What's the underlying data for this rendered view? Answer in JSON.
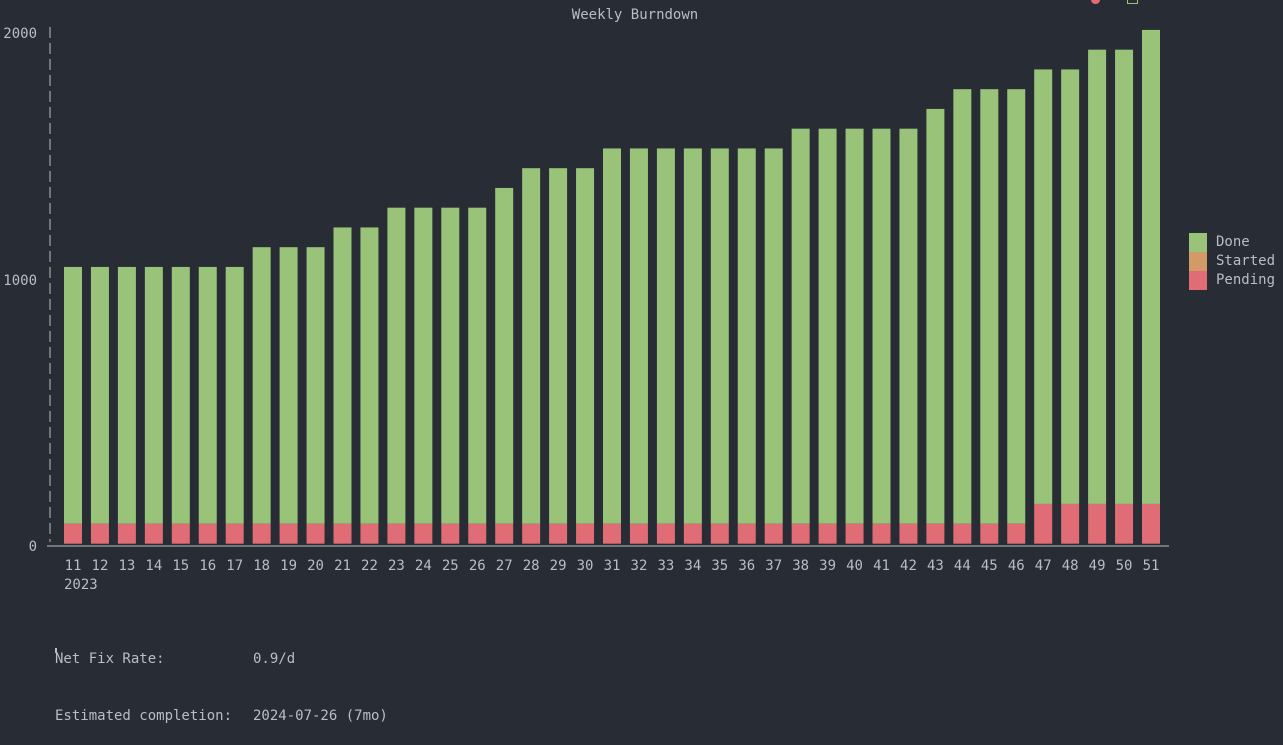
{
  "chart_data": {
    "type": "bar",
    "stacked": true,
    "title": "Weekly Burndown",
    "categories": [
      "11",
      "12",
      "13",
      "14",
      "15",
      "16",
      "17",
      "18",
      "19",
      "20",
      "21",
      "22",
      "23",
      "24",
      "25",
      "26",
      "27",
      "28",
      "29",
      "30",
      "31",
      "32",
      "33",
      "34",
      "35",
      "36",
      "37",
      "38",
      "39",
      "40",
      "41",
      "42",
      "43",
      "44",
      "45",
      "46",
      "47",
      "48",
      "49",
      "50",
      "51"
    ],
    "x_sublabel": "2023",
    "yticks": [
      "0",
      "1000",
      "2000"
    ],
    "ylim": [
      0,
      2000
    ],
    "series": [
      {
        "name": "Pending",
        "color": "#e06c75",
        "values": [
          78,
          78,
          78,
          78,
          78,
          78,
          78,
          78,
          78,
          78,
          78,
          78,
          78,
          78,
          78,
          78,
          78,
          78,
          78,
          78,
          78,
          78,
          78,
          78,
          78,
          78,
          78,
          78,
          78,
          78,
          78,
          78,
          78,
          78,
          78,
          78,
          155,
          155,
          155,
          155,
          155
        ]
      },
      {
        "name": "Started",
        "color": "#d19a66",
        "values": [
          0,
          0,
          0,
          0,
          0,
          0,
          0,
          0,
          0,
          0,
          0,
          0,
          0,
          0,
          0,
          0,
          0,
          0,
          0,
          0,
          0,
          0,
          0,
          0,
          0,
          0,
          0,
          0,
          0,
          0,
          0,
          0,
          0,
          0,
          0,
          0,
          0,
          0,
          0,
          0,
          0
        ]
      },
      {
        "name": "Done",
        "color": "#98c379",
        "values": [
          1001,
          1001,
          1001,
          1001,
          1001,
          1001,
          1001,
          1078,
          1078,
          1078,
          1155,
          1155,
          1232,
          1232,
          1232,
          1232,
          1309,
          1386,
          1386,
          1386,
          1463,
          1463,
          1463,
          1463,
          1463,
          1463,
          1463,
          1540,
          1540,
          1540,
          1540,
          1540,
          1617,
          1694,
          1694,
          1694,
          1694,
          1694,
          1771,
          1771,
          1848
        ]
      }
    ],
    "legend": {
      "position": "right",
      "order": [
        "Done",
        "Started",
        "Pending"
      ]
    }
  },
  "footer": {
    "rate_label": "Net Fix Rate:",
    "rate_value": "0.9/d",
    "completion_label": "Estimated completion:",
    "completion_value": "2024-07-26 (7mo)"
  }
}
